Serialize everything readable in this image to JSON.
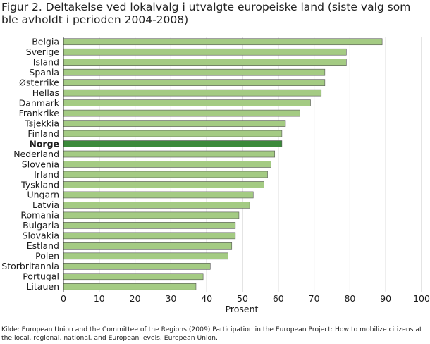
{
  "title": "Figur 2. Deltakelse ved lokalvalg i utvalgte europeiske land (siste valg som ble avholdt i perioden 2004-2008)",
  "source": "Kilde: European Union and the Committee of the Regions (2009) Participation in the European Project: How to mobilize citizens at the local, regional, national, and European levels. European Union.",
  "colors": {
    "bar": "#a4cb83",
    "bar_border": "#555555",
    "highlight": "#3b8a3a",
    "grid": "#c8c8c8"
  },
  "chart_data": {
    "type": "bar",
    "orientation": "horizontal",
    "categories": [
      "Belgia",
      "Sverige",
      "Island",
      "Spania",
      "Østerrike",
      "Hellas",
      "Danmark",
      "Frankrike",
      "Tsjekkia",
      "Finland",
      "Norge",
      "Nederland",
      "Slovenia",
      "Irland",
      "Tyskland",
      "Ungarn",
      "Latvia",
      "Romania",
      "Bulgaria",
      "Slovakia",
      "Estland",
      "Polen",
      "Storbritannia",
      "Portugal",
      "Litauen"
    ],
    "values": [
      89,
      79,
      79,
      73,
      73,
      72,
      69,
      66,
      62,
      61,
      61,
      59,
      58,
      57,
      56,
      53,
      52,
      49,
      48,
      48,
      47,
      46,
      41,
      39,
      37
    ],
    "highlight": "Norge",
    "xlabel": "Prosent",
    "ylabel": "",
    "xlim": [
      0,
      100
    ],
    "xticks": [
      0,
      10,
      20,
      30,
      40,
      50,
      60,
      70,
      80,
      90,
      100
    ],
    "grid": true,
    "legend": false
  }
}
